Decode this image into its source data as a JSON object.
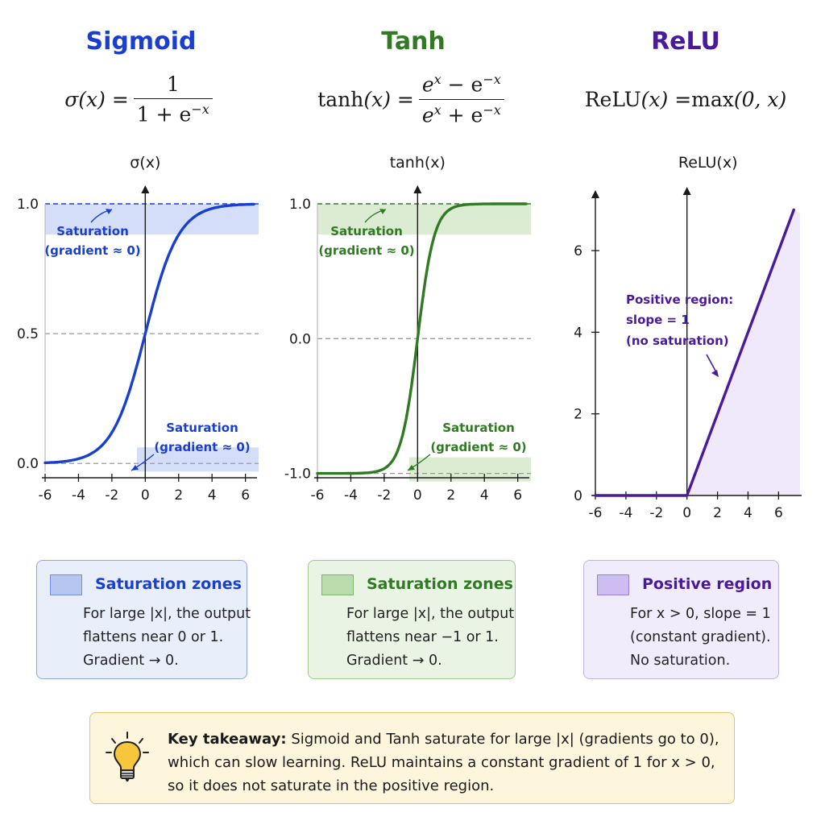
{
  "panels": [
    {
      "title": "Sigmoid",
      "color": "#1a3fd0",
      "formula": {
        "lhs": "σ(x) =",
        "numerator": "1",
        "denominator": "1 + e",
        "den_sup": "−x"
      },
      "ylabel": "σ(x)",
      "annotations": [
        {
          "line1": "Saturation",
          "line2": "(gradient ≈ 0)"
        },
        {
          "line1": "Saturation",
          "line2": "(gradient ≈ 0)"
        }
      ],
      "legend": {
        "title": "Saturation zones",
        "lines": [
          "For large |x|, the output",
          "flattens near 0 or 1.",
          "Gradient → 0."
        ]
      }
    },
    {
      "title": "Tanh",
      "color": "#2f7a22",
      "formula": {
        "lhs_fn": "tanh",
        "lhs_arg": "(x) =",
        "num_base": "e",
        "num_sup1": "x",
        "num_mid": " − e",
        "num_sup2": "−x",
        "den_base": "e",
        "den_sup1": "x",
        "den_mid": " + e",
        "den_sup2": "−x"
      },
      "ylabel": "tanh(x)",
      "annotations": [
        {
          "line1": "Saturation",
          "line2": "(gradient ≈ 0)"
        },
        {
          "line1": "Saturation",
          "line2": "(gradient ≈ 0)"
        }
      ],
      "legend": {
        "title": "Saturation zones",
        "lines": [
          "For large |x|, the output",
          "flattens near −1 or 1.",
          "Gradient → 0."
        ]
      }
    },
    {
      "title": "ReLU",
      "color": "#4a1a9c",
      "formula": {
        "text_fn": "ReLU",
        "text_rest": "(x) = ",
        "max_fn": "max",
        "max_args": "(0, x)"
      },
      "ylabel": "ReLU(x)",
      "annotations": [
        {
          "line1": "Positive region:",
          "line2": "slope = 1",
          "line3": "(no saturation)"
        }
      ],
      "legend": {
        "title": "Positive region",
        "lines": [
          "For x > 0, slope = 1",
          "(constant gradient).",
          "No saturation."
        ]
      }
    }
  ],
  "takeaway": {
    "bold": "Key takeaway:",
    "line1_rest": " Sigmoid and Tanh saturate for large |x| (gradients go to 0),",
    "line2": "which can slow learning. ReLU maintains a constant gradient of 1 for x > 0,",
    "line3": "so it does not saturate in the positive region."
  },
  "chart_data": [
    {
      "type": "line",
      "title": "Sigmoid",
      "ylabel": "σ(x)",
      "x": [
        -6,
        -5,
        -4,
        -3,
        -2,
        -1,
        0,
        1,
        2,
        3,
        4,
        5,
        6
      ],
      "series": [
        {
          "values": [
            0.0025,
            0.0067,
            0.018,
            0.047,
            0.119,
            0.269,
            0.5,
            0.731,
            0.881,
            0.953,
            0.982,
            0.993,
            0.9975
          ]
        }
      ],
      "xlim": [
        -6,
        6.5
      ],
      "ylim": [
        -0.08,
        1.0
      ],
      "xticks": [
        "-6",
        "-4",
        "-2",
        "0",
        "2",
        "4",
        "6"
      ],
      "yticks": [
        "0.0",
        "0.5",
        "1.0"
      ],
      "grid": false
    },
    {
      "type": "line",
      "title": "Tanh",
      "ylabel": "tanh(x)",
      "x": [
        -6,
        -5,
        -4,
        -3,
        -2,
        -1,
        0,
        1,
        2,
        3,
        4,
        5,
        6
      ],
      "series": [
        {
          "values": [
            -1.0,
            -0.9999,
            -0.9993,
            -0.995,
            -0.964,
            -0.762,
            0.0,
            0.762,
            0.964,
            0.995,
            0.9993,
            0.9999,
            1.0
          ]
        }
      ],
      "xlim": [
        -6,
        6.5
      ],
      "ylim": [
        -1.08,
        1.0
      ],
      "xticks": [
        "-6",
        "-4",
        "-2",
        "0",
        "2",
        "4",
        "6"
      ],
      "yticks": [
        "-1.0",
        "0.0",
        "1.0"
      ],
      "grid": false
    },
    {
      "type": "line",
      "title": "ReLU",
      "ylabel": "ReLU(x)",
      "x": [
        -6,
        -4,
        -2,
        0,
        2,
        4,
        6,
        7
      ],
      "series": [
        {
          "values": [
            0,
            0,
            0,
            0,
            2,
            4,
            6,
            7
          ]
        }
      ],
      "xlim": [
        -6,
        7.3
      ],
      "ylim": [
        0,
        7.6
      ],
      "xticks": [
        "-6",
        "-4",
        "-2",
        "0",
        "2",
        "4",
        "6"
      ],
      "yticks": [
        "0",
        "2",
        "4",
        "6"
      ],
      "grid": false
    }
  ]
}
